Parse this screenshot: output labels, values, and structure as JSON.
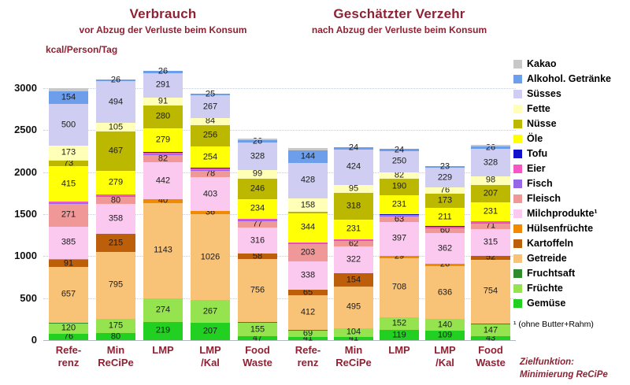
{
  "notes": {
    "footnote": "¹ (ohne Butter+Rahm)",
    "objective": [
      "Zielfunktion:",
      "Minimierung ReCiPe"
    ]
  },
  "chart_data": {
    "type": "bar",
    "stacked": true,
    "title": "",
    "xlabel": "",
    "ylabel": "kcal/Person/Tag",
    "ylim": [
      0,
      3400
    ],
    "yticks": [
      0,
      500,
      1000,
      1500,
      2000,
      2500,
      3000
    ],
    "grid": "horizontal-dotted",
    "legend_position": "right",
    "categories_bottom_to_top": [
      {
        "name": "Gemüse",
        "color": "#21d021"
      },
      {
        "name": "Früchte",
        "color": "#94e34f"
      },
      {
        "name": "Fruchtsaft",
        "color": "#2e8b2e"
      },
      {
        "name": "Getreide",
        "color": "#f9c377"
      },
      {
        "name": "Kartoffeln",
        "color": "#bd5e0a"
      },
      {
        "name": "Hülsenfrüchte",
        "color": "#f08a00"
      },
      {
        "name": "Milchprodukte",
        "legend_label": "Milchprodukte¹",
        "color": "#fbc9f0"
      },
      {
        "name": "Fleisch",
        "color": "#f09898"
      },
      {
        "name": "Fisch",
        "color": "#9668e8"
      },
      {
        "name": "Eier",
        "color": "#f556c4"
      },
      {
        "name": "Tofu",
        "color": "#1111cc"
      },
      {
        "name": "Öle",
        "color": "#ffff05"
      },
      {
        "name": "Nüsse",
        "color": "#bcb800"
      },
      {
        "name": "Fette",
        "color": "#ffffb8"
      },
      {
        "name": "Süsses",
        "color": "#cfcdf2"
      },
      {
        "name": "Alkohol. Getränke",
        "color": "#6d9eeb"
      },
      {
        "name": "Kakao",
        "color": "#c8c8c8"
      }
    ],
    "groups": [
      {
        "title": "Verbrauch",
        "subtitle": "vor Abzug der Verluste beim Konsum",
        "bars": [
          {
            "name": "Referenz",
            "label_lines": [
              "Refe-",
              "renz"
            ],
            "values_bottom_to_top": [
              [
                76,
                "76"
              ],
              [
                120,
                "120"
              ],
              [
                15,
                ""
              ],
              [
                657,
                "657"
              ],
              [
                91,
                "91"
              ],
              [
                8,
                ""
              ],
              [
                385,
                "385"
              ],
              [
                271,
                "271"
              ],
              [
                12,
                ""
              ],
              [
                18,
                ""
              ],
              [
                0,
                ""
              ],
              [
                415,
                "415"
              ],
              [
                73,
                "73"
              ],
              [
                173,
                "173"
              ],
              [
                500,
                "500"
              ],
              [
                154,
                "154"
              ],
              [
                30,
                ""
              ]
            ]
          },
          {
            "name": "Min ReCiPe",
            "label_lines": [
              "Min",
              "ReCiPe"
            ],
            "values_bottom_to_top": [
              [
                80,
                "80"
              ],
              [
                175,
                "175"
              ],
              [
                0,
                ""
              ],
              [
                795,
                "795"
              ],
              [
                215,
                "215"
              ],
              [
                0,
                ""
              ],
              [
                358,
                "358"
              ],
              [
                80,
                "80"
              ],
              [
                15,
                ""
              ],
              [
                20,
                ""
              ],
              [
                0,
                ""
              ],
              [
                279,
                "279"
              ],
              [
                467,
                "467"
              ],
              [
                105,
                "105"
              ],
              [
                494,
                "494"
              ],
              [
                26,
                "26"
              ],
              [
                0,
                ""
              ]
            ]
          },
          {
            "name": "LMP",
            "label_lines": [
              "LMP"
            ],
            "values_bottom_to_top": [
              [
                219,
                "219"
              ],
              [
                274,
                "274"
              ],
              [
                0,
                ""
              ],
              [
                1143,
                "1143"
              ],
              [
                0,
                ""
              ],
              [
                40,
                "40"
              ],
              [
                442,
                "442"
              ],
              [
                82,
                "82"
              ],
              [
                12,
                ""
              ],
              [
                20,
                ""
              ],
              [
                8,
                ""
              ],
              [
                279,
                "279"
              ],
              [
                280,
                "280"
              ],
              [
                91,
                "91"
              ],
              [
                291,
                "291"
              ],
              [
                26,
                "26"
              ],
              [
                0,
                ""
              ]
            ]
          },
          {
            "name": "LMP/Kal",
            "label_lines": [
              "LMP",
              "/Kal"
            ],
            "values_bottom_to_top": [
              [
                207,
                "207"
              ],
              [
                267,
                "267"
              ],
              [
                0,
                ""
              ],
              [
                1026,
                "1026"
              ],
              [
                0,
                ""
              ],
              [
                36,
                "36"
              ],
              [
                403,
                "403"
              ],
              [
                78,
                "78"
              ],
              [
                8,
                ""
              ],
              [
                15,
                ""
              ],
              [
                12,
                ""
              ],
              [
                254,
                "254"
              ],
              [
                256,
                "256"
              ],
              [
                84,
                "84"
              ],
              [
                267,
                "267"
              ],
              [
                25,
                "25"
              ],
              [
                0,
                ""
              ]
            ]
          },
          {
            "name": "Food Waste",
            "label_lines": [
              "Food",
              "Waste"
            ],
            "values_bottom_to_top": [
              [
                47,
                "47"
              ],
              [
                155,
                "155"
              ],
              [
                12,
                ""
              ],
              [
                756,
                "756"
              ],
              [
                58,
                "58"
              ],
              [
                0,
                ""
              ],
              [
                316,
                "316"
              ],
              [
                77,
                "77"
              ],
              [
                10,
                ""
              ],
              [
                15,
                ""
              ],
              [
                0,
                ""
              ],
              [
                234,
                "234"
              ],
              [
                246,
                "246"
              ],
              [
                99,
                "99"
              ],
              [
                328,
                "328"
              ],
              [
                26,
                "26"
              ],
              [
                25,
                ""
              ]
            ]
          }
        ]
      },
      {
        "title": "Geschätzter Verzehr",
        "subtitle": "nach Abzug der Verluste beim Konsum",
        "bars": [
          {
            "name": "Referenz",
            "label_lines": [
              "Refe-",
              "renz"
            ],
            "values_bottom_to_top": [
              [
                41,
                "41"
              ],
              [
                69,
                "69"
              ],
              [
                12,
                ""
              ],
              [
                412,
                "412"
              ],
              [
                65,
                "65"
              ],
              [
                0,
                ""
              ],
              [
                338,
                "338"
              ],
              [
                203,
                "203"
              ],
              [
                10,
                ""
              ],
              [
                15,
                ""
              ],
              [
                0,
                ""
              ],
              [
                344,
                "344"
              ],
              [
                20,
                ""
              ],
              [
                158,
                "158"
              ],
              [
                428,
                "428"
              ],
              [
                144,
                "144"
              ],
              [
                28,
                ""
              ]
            ]
          },
          {
            "name": "Min ReCiPe",
            "label_lines": [
              "Min",
              "ReCiPe"
            ],
            "values_bottom_to_top": [
              [
                41,
                "41"
              ],
              [
                104,
                "104"
              ],
              [
                0,
                ""
              ],
              [
                495,
                "495"
              ],
              [
                154,
                "154"
              ],
              [
                0,
                ""
              ],
              [
                322,
                "322"
              ],
              [
                62,
                "62"
              ],
              [
                12,
                ""
              ],
              [
                15,
                ""
              ],
              [
                0,
                ""
              ],
              [
                231,
                "231"
              ],
              [
                318,
                "318"
              ],
              [
                95,
                "95"
              ],
              [
                424,
                "424"
              ],
              [
                24,
                "24"
              ],
              [
                0,
                ""
              ]
            ]
          },
          {
            "name": "LMP",
            "label_lines": [
              "LMP"
            ],
            "values_bottom_to_top": [
              [
                119,
                "119"
              ],
              [
                152,
                "152"
              ],
              [
                0,
                ""
              ],
              [
                708,
                "708"
              ],
              [
                0,
                ""
              ],
              [
                29,
                "29"
              ],
              [
                397,
                "397"
              ],
              [
                63,
                "63"
              ],
              [
                10,
                ""
              ],
              [
                15,
                ""
              ],
              [
                6,
                ""
              ],
              [
                231,
                "231"
              ],
              [
                190,
                "190"
              ],
              [
                82,
                "82"
              ],
              [
                250,
                "250"
              ],
              [
                24,
                "24"
              ],
              [
                0,
                ""
              ]
            ]
          },
          {
            "name": "LMP/Kal",
            "label_lines": [
              "LMP",
              "/Kal"
            ],
            "values_bottom_to_top": [
              [
                109,
                "109"
              ],
              [
                140,
                "140"
              ],
              [
                0,
                ""
              ],
              [
                636,
                "636"
              ],
              [
                0,
                ""
              ],
              [
                26,
                "26"
              ],
              [
                362,
                "362"
              ],
              [
                60,
                "60"
              ],
              [
                6,
                ""
              ],
              [
                12,
                ""
              ],
              [
                10,
                ""
              ],
              [
                211,
                "211"
              ],
              [
                173,
                "173"
              ],
              [
                76,
                "76"
              ],
              [
                229,
                "229"
              ],
              [
                23,
                "23"
              ],
              [
                0,
                ""
              ]
            ]
          },
          {
            "name": "Food Waste",
            "label_lines": [
              "Food",
              "Waste"
            ],
            "values_bottom_to_top": [
              [
                43,
                "43"
              ],
              [
                147,
                "147"
              ],
              [
                10,
                ""
              ],
              [
                754,
                "754"
              ],
              [
                52,
                "52"
              ],
              [
                0,
                ""
              ],
              [
                315,
                "315"
              ],
              [
                71,
                "71"
              ],
              [
                10,
                ""
              ],
              [
                12,
                ""
              ],
              [
                0,
                ""
              ],
              [
                231,
                "231"
              ],
              [
                207,
                "207"
              ],
              [
                98,
                "98"
              ],
              [
                328,
                "328"
              ],
              [
                26,
                "26"
              ],
              [
                20,
                ""
              ]
            ]
          }
        ]
      }
    ]
  }
}
